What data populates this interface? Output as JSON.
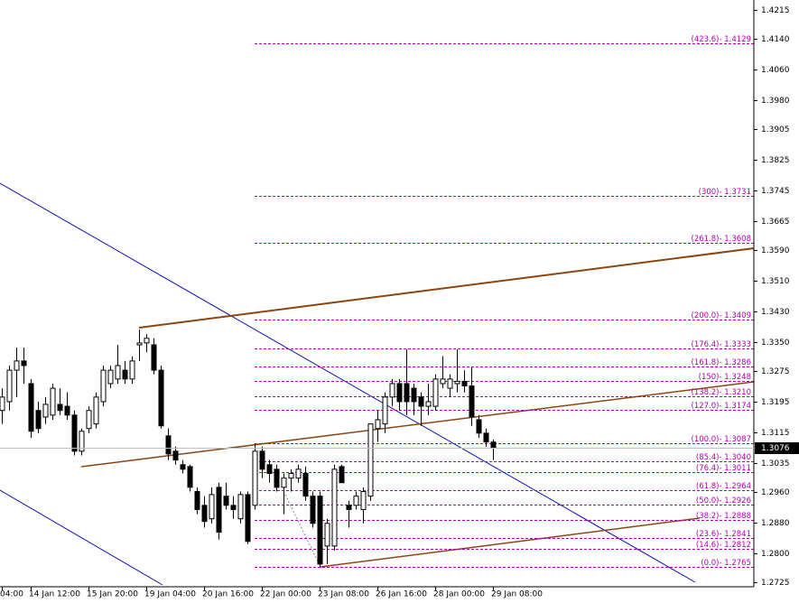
{
  "chart_data": {
    "type": "candlestick",
    "categories": [
      "04:00",
      null,
      null,
      null,
      "14 Jan 12:00",
      null,
      null,
      null,
      null,
      null,
      null,
      null,
      "15 Jan 20:00",
      null,
      null,
      null,
      null,
      null,
      null,
      null,
      "19 Jan 04:00",
      null,
      null,
      null,
      null,
      null,
      null,
      null,
      "20 Jan 16:00",
      null,
      null,
      null,
      null,
      null,
      null,
      null,
      "22 Jan 00:00",
      null,
      null,
      null,
      null,
      null,
      null,
      null,
      "23 Jan 08:00",
      null,
      null,
      null,
      null,
      null,
      null,
      null,
      "26 Jan 16:00",
      null,
      null,
      null,
      null,
      null,
      null,
      null,
      "28 Jan 00:00",
      null,
      null,
      null,
      null,
      null,
      null,
      null,
      "29 Jan 08:00"
    ],
    "open": [
      1.3172,
      1.3195,
      1.3277,
      1.3301,
      1.3242,
      1.3172,
      1.3155,
      1.316,
      1.3188,
      1.3183,
      1.316,
      1.3066,
      1.3125,
      1.3137,
      1.3195,
      1.3242,
      1.3254,
      1.3277,
      1.3254,
      1.3343,
      1.3348,
      1.3343,
      1.3277,
      1.3106,
      1.3066,
      1.3031,
      1.3026,
      1.2961,
      1.2925,
      1.289,
      1.2972,
      1.2949,
      1.2925,
      1.289,
      1.2953,
      1.2925,
      1.3066,
      1.3031,
      1.3019,
      1.2972,
      1.2996,
      1.2996,
      1.3008,
      1.2949,
      1.2949,
      1.2819,
      1.2819,
      1.3026,
      1.2925,
      1.2925,
      1.2914,
      1.2949,
      1.3125,
      1.3137,
      1.3207,
      1.3242,
      1.3242,
      1.323,
      1.3207,
      1.3183,
      1.3183,
      1.3242,
      1.323,
      1.3242,
      1.3248,
      1.3236,
      1.3148,
      1.3113,
      1.309
    ],
    "high": [
      1.323,
      1.3289,
      1.3336,
      1.3336,
      1.3254,
      1.3195,
      1.3207,
      1.3242,
      1.323,
      1.3219,
      1.3172,
      1.3125,
      1.3183,
      1.3219,
      1.3289,
      1.3289,
      1.3343,
      1.3301,
      1.3313,
      1.3383,
      1.3371,
      1.336,
      1.3289,
      1.3125,
      1.3078,
      1.3043,
      1.3031,
      1.2972,
      1.2949,
      1.2972,
      1.2984,
      1.2984,
      1.2949,
      1.2961,
      1.2961,
      1.3085,
      1.3078,
      1.3043,
      1.3031,
      1.3008,
      1.3019,
      1.3031,
      1.3026,
      1.2961,
      1.2961,
      1.289,
      1.3031,
      1.3031,
      1.2937,
      1.2961,
      1.2972,
      1.3137,
      1.3172,
      1.3219,
      1.3254,
      1.3254,
      1.3331,
      1.3242,
      1.3219,
      1.3242,
      1.3266,
      1.3313,
      1.3266,
      1.3331,
      1.3277,
      1.3284,
      1.316,
      1.3125,
      1.3096
    ],
    "low": [
      1.3137,
      1.3172,
      1.3207,
      1.3242,
      1.3101,
      1.3113,
      1.3137,
      1.3148,
      1.316,
      1.3148,
      1.3055,
      1.3055,
      1.3113,
      1.3125,
      1.3183,
      1.323,
      1.3242,
      1.3242,
      1.3242,
      1.3301,
      1.3324,
      1.3266,
      1.3125,
      1.3043,
      1.3031,
      1.3008,
      1.2961,
      1.2902,
      1.2867,
      1.2878,
      1.2836,
      1.2914,
      1.289,
      1.2878,
      1.2824,
      1.2914,
      1.2996,
      1.2984,
      1.2961,
      1.2902,
      1.2961,
      1.2984,
      1.2937,
      1.2867,
      1.2765,
      1.2772,
      1.2807,
      1.2984,
      1.2867,
      1.2914,
      1.2878,
      1.2937,
      1.309,
      1.3113,
      1.3183,
      1.3172,
      1.316,
      1.316,
      1.3132,
      1.316,
      1.3172,
      1.323,
      1.3207,
      1.3219,
      1.3219,
      1.3132,
      1.3101,
      1.3078,
      1.3043
    ],
    "close": [
      1.3207,
      1.3277,
      1.3301,
      1.3289,
      1.3118,
      1.3125,
      1.3188,
      1.323,
      1.3172,
      1.316,
      1.3066,
      1.3118,
      1.3172,
      1.3207,
      1.3277,
      1.3277,
      1.3289,
      1.3254,
      1.3301,
      1.3348,
      1.336,
      1.3277,
      1.3132,
      1.3059,
      1.3043,
      1.3019,
      1.2972,
      1.2914,
      1.2883,
      1.2953,
      1.2855,
      1.2925,
      1.2914,
      1.2953,
      1.2831,
      1.3066,
      1.3019,
      1.3008,
      1.2972,
      1.2996,
      1.3008,
      1.3019,
      1.2949,
      1.2878,
      1.2772,
      1.2878,
      1.3019,
      1.2984,
      1.2914,
      1.2949,
      1.2961,
      1.3137,
      1.3148,
      1.3207,
      1.3242,
      1.3195,
      1.3195,
      1.3195,
      1.3183,
      1.3195,
      1.3254,
      1.3254,
      1.3254,
      1.3248,
      1.3236,
      1.3155,
      1.3113,
      1.309,
      1.3076
    ],
    "bull_color": "#ffffff",
    "bear_color": "#000000",
    "ylim": [
      1.2713,
      1.4241
    ],
    "yticks": [
      1.4215,
      {
        "value": 1.414,
        "label": "1.4140"
      },
      {
        "value": 1.406,
        "label": "1.4060"
      },
      {
        "value": 1.398,
        "label": "1.3980"
      },
      1.3905,
      1.3825,
      1.3745,
      1.3665,
      {
        "value": 1.359,
        "label": "1.3590"
      },
      {
        "value": 1.351,
        "label": "1.3510"
      },
      {
        "value": 1.343,
        "label": "1.3430"
      },
      {
        "value": 1.335,
        "label": "1.3350"
      },
      1.3275,
      1.3195,
      1.3115,
      1.3035,
      {
        "value": 1.296,
        "label": "1.2960"
      },
      {
        "value": 1.288,
        "label": "1.2880"
      },
      {
        "value": 1.28,
        "label": "1.2800"
      },
      1.2725
    ],
    "last_price": 1.3076,
    "fib_color": "#b000b0",
    "fib_levels": [
      {
        "value": 1.4129,
        "label": "(423.6)- 1.4129"
      },
      {
        "value": 1.3731,
        "label": "(300)- 1.3731"
      },
      {
        "value": 1.3608,
        "label": "(261.8)- 1.3608"
      },
      {
        "value": 1.3409,
        "label": "(200.0)- 1.3409"
      },
      {
        "value": 1.3333,
        "label": "(176.4)- 1.3333"
      },
      {
        "value": 1.3286,
        "label": "(161.8)- 1.3286"
      },
      {
        "value": 1.3248,
        "label": "(150)- 1.3248"
      },
      {
        "value": 1.321,
        "label": "(138.2)- 1.3210"
      },
      {
        "value": 1.3174,
        "label": "(127.0)- 1.3174"
      },
      {
        "value": 1.3087,
        "label": "(100.0)- 1.3087"
      },
      {
        "value": 1.304,
        "label": "(85.4)- 1.3040"
      },
      {
        "value": 1.3011,
        "label": "(76.4)- 1.3011"
      },
      {
        "value": 1.2964,
        "label": "(61.8)- 1.2964"
      },
      {
        "value": 1.2926,
        "label": "(50.0)- 1.2926"
      },
      {
        "value": 1.2888,
        "label": "(38.2)- 1.2888"
      },
      {
        "value": 1.2841,
        "label": "(23.6)- 1.2841"
      },
      {
        "value": 1.2812,
        "label": "(14.6)- 1.2812"
      },
      {
        "value": 1.2765,
        "label": "(0.0)- 1.2765"
      }
    ]
  }
}
